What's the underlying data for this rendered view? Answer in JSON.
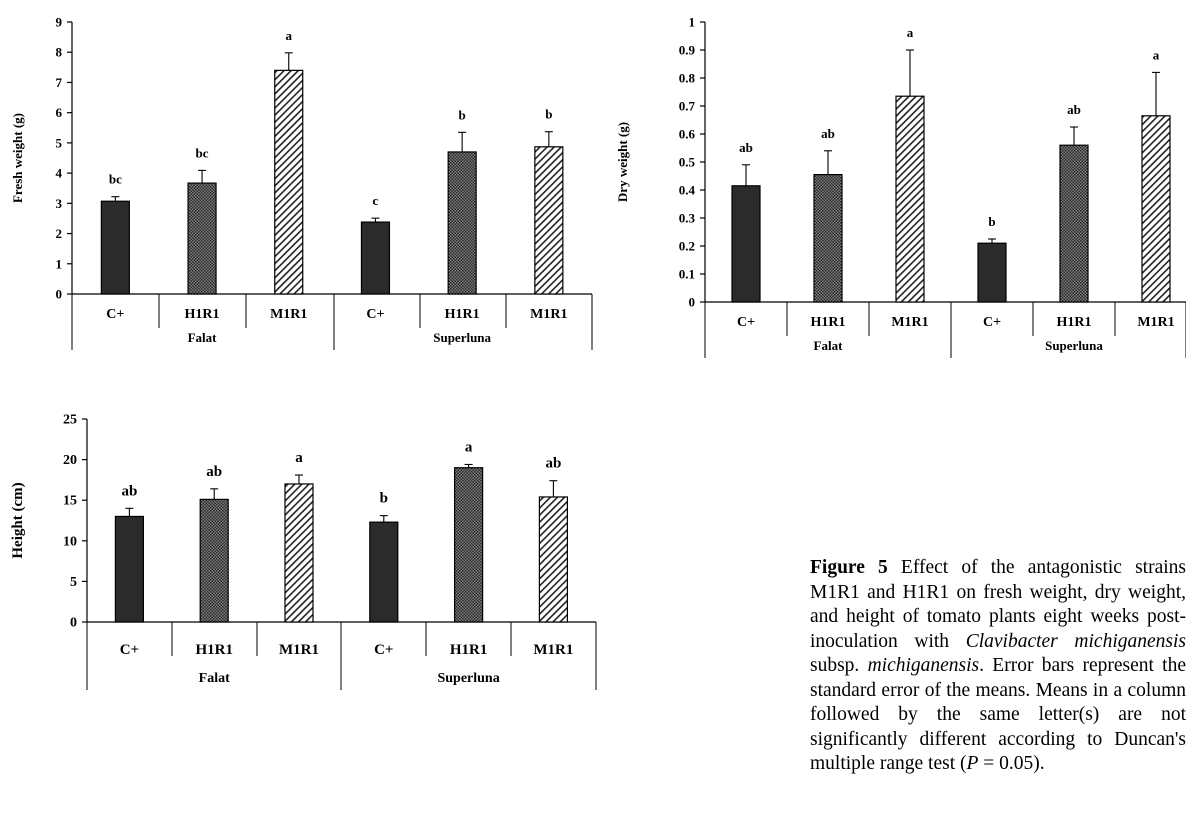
{
  "chart_data": [
    {
      "type": "bar",
      "title": "",
      "ylabel": "Fresh weight (g)",
      "xlabel": "",
      "ylim": [
        0,
        9
      ],
      "yticks": [
        "0",
        "1",
        "2",
        "3",
        "4",
        "5",
        "6",
        "7",
        "8",
        "9"
      ],
      "groups": [
        "Falat",
        "Superluna"
      ],
      "categories": [
        "C+",
        "H1R1",
        "M1R1",
        "C+",
        "H1R1",
        "M1R1"
      ],
      "values": [
        3.07,
        3.67,
        7.4,
        2.38,
        4.7,
        4.87
      ],
      "errors": [
        0.15,
        0.42,
        0.58,
        0.13,
        0.65,
        0.5
      ],
      "letters": [
        "bc",
        "bc",
        "a",
        "c",
        "b",
        "b"
      ],
      "grid": false
    },
    {
      "type": "bar",
      "title": "",
      "ylabel": "Dry weight (g)",
      "xlabel": "",
      "ylim": [
        0,
        1
      ],
      "yticks": [
        "0",
        "0.1",
        "0.2",
        "0.3",
        "0.4",
        "0.5",
        "0.6",
        "0.7",
        "0.8",
        "0.9",
        "1"
      ],
      "groups": [
        "Falat",
        "Superluna"
      ],
      "categories": [
        "C+",
        "H1R1",
        "M1R1",
        "C+",
        "H1R1",
        "M1R1"
      ],
      "values": [
        0.415,
        0.455,
        0.735,
        0.21,
        0.56,
        0.665
      ],
      "errors": [
        0.075,
        0.085,
        0.165,
        0.015,
        0.065,
        0.155
      ],
      "letters": [
        "ab",
        "ab",
        "a",
        "b",
        "ab",
        "a"
      ],
      "grid": false
    },
    {
      "type": "bar",
      "title": "",
      "ylabel": "Height (cm)",
      "xlabel": "",
      "ylim": [
        0,
        25
      ],
      "yticks": [
        "0",
        "5",
        "10",
        "15",
        "20",
        "25"
      ],
      "groups": [
        "Falat",
        "Superluna"
      ],
      "categories": [
        "C+",
        "H1R1",
        "M1R1",
        "C+",
        "H1R1",
        "M1R1"
      ],
      "values": [
        13.0,
        15.1,
        17.0,
        12.3,
        19.0,
        15.4
      ],
      "errors": [
        1.0,
        1.3,
        1.1,
        0.8,
        0.4,
        2.0
      ],
      "letters": [
        "ab",
        "ab",
        "a",
        "b",
        "a",
        "ab"
      ],
      "grid": false
    }
  ],
  "caption": {
    "label": "Figure 5",
    "part1": " Effect of the antagonistic strains M1R1 and H1R1 on fresh weight, dry weight, and height of tomato plants eight weeks post-inoculation with ",
    "italic1": "Clavibacter michiganensis",
    "part2": " subsp. ",
    "italic2": "michiganensis",
    "part3": ". Error bars represent the standard error of the means. Means in a column followed by the same letter(s) are not significantly different according to Duncan's multiple range test (",
    "italic3": "P",
    "part4": " = 0.05)."
  }
}
